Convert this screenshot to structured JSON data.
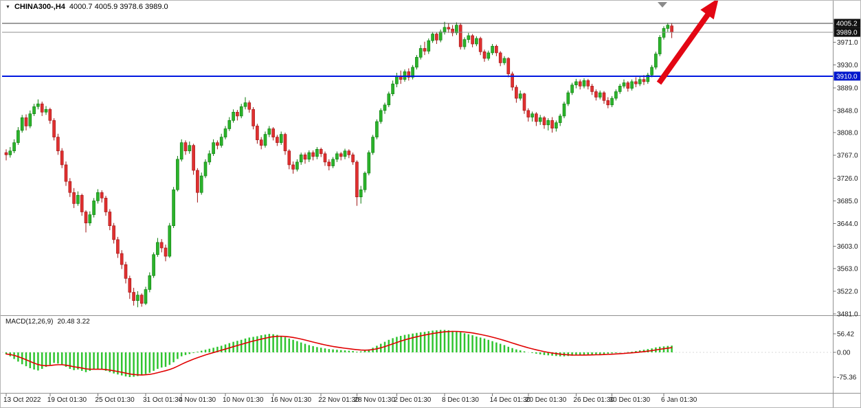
{
  "header": {
    "dropdown_icon": "▼",
    "symbol_label": "CHINA300-,H4",
    "ohlc": "4000.7 4005.9 3978.6 3989.0"
  },
  "macd_header": {
    "label": "MACD(12,26,9)",
    "values": "20.48 3.22"
  },
  "price_axis": {
    "ticks": [
      "3971.0",
      "3930.0",
      "3889.0",
      "3848.0",
      "3808.0",
      "3767.0",
      "3726.0",
      "3685.0",
      "3644.0",
      "3603.0",
      "3563.0",
      "3522.0",
      "3481.0"
    ],
    "badges": [
      {
        "value": "4005.2",
        "bg": "#101010",
        "fg": "#ffffff"
      },
      {
        "value": "3989.0",
        "bg": "#101010",
        "fg": "#ffffff"
      },
      {
        "value": "3910.0",
        "bg": "#0017cc",
        "fg": "#ffffff"
      }
    ]
  },
  "macd_axis": {
    "ticks": [
      "56.42",
      "0.00",
      "-75.36"
    ]
  },
  "time_axis": {
    "labels": [
      {
        "text": "13 Oct 2022",
        "bar": 0
      },
      {
        "text": "19 Oct 01:30",
        "bar": 11
      },
      {
        "text": "25 Oct 01:30",
        "bar": 23
      },
      {
        "text": "31 Oct 01:30",
        "bar": 35
      },
      {
        "text": "4 Nov 01:30",
        "bar": 44
      },
      {
        "text": "10 Nov 01:30",
        "bar": 55
      },
      {
        "text": "16 Nov 01:30",
        "bar": 67
      },
      {
        "text": "22 Nov 01:30",
        "bar": 79
      },
      {
        "text": "28 Nov 01:30",
        "bar": 88
      },
      {
        "text": "2 Dec 01:30",
        "bar": 98
      },
      {
        "text": "8 Dec 01:30",
        "bar": 110
      },
      {
        "text": "14 Dec 01:30",
        "bar": 122
      },
      {
        "text": "20 Dec 01:30",
        "bar": 131
      },
      {
        "text": "26 Dec 01:30",
        "bar": 143
      },
      {
        "text": "30 Dec 01:30",
        "bar": 152
      },
      {
        "text": "6 Jan 01:30",
        "bar": 165
      }
    ]
  },
  "colors": {
    "candle_up": "#2bb32b",
    "candle_up_stroke": "#0a7a0a",
    "candle_down": "#e03030",
    "candle_down_stroke": "#9e1212",
    "support_line": "#0017e0",
    "high_level_line": "#3c3c3c",
    "close_level_line": "#8c8c8c",
    "macd_histogram": "#2fc42f",
    "macd_signal": "#e00000",
    "arrow": "#e30613",
    "bar_marker": "#8a8a8a",
    "axis_text": "#1a1a1a"
  },
  "annotations": {
    "red_arrow_direction": "up-right",
    "bar_shift_marker": "▼"
  },
  "chart_data": {
    "type": "candlestick",
    "symbol": "CHINA300-",
    "timeframe": "H4",
    "title": "CHINA300-,H4 4000.7 4005.9 3978.6 3989.0",
    "current_bar": {
      "open": 4000.7,
      "high": 4005.9,
      "low": 3978.6,
      "close": 3989.0
    },
    "price_axis_range": {
      "min": 3481.0,
      "max": 4005.2
    },
    "levels": {
      "session_high_line": 4005.2,
      "last_price_line": 3989.0,
      "horizontal_support_line": 3910.0
    },
    "candles": [
      [
        3772,
        3778,
        3758,
        3768
      ],
      [
        3768,
        3782,
        3763,
        3775
      ],
      [
        3775,
        3796,
        3771,
        3790
      ],
      [
        3790,
        3818,
        3786,
        3812
      ],
      [
        3812,
        3840,
        3808,
        3835
      ],
      [
        3835,
        3841,
        3812,
        3820
      ],
      [
        3820,
        3848,
        3816,
        3842
      ],
      [
        3842,
        3860,
        3838,
        3855
      ],
      [
        3855,
        3868,
        3850,
        3860
      ],
      [
        3860,
        3864,
        3838,
        3845
      ],
      [
        3845,
        3856,
        3840,
        3850
      ],
      [
        3850,
        3853,
        3824,
        3830
      ],
      [
        3830,
        3834,
        3794,
        3800
      ],
      [
        3800,
        3806,
        3768,
        3775
      ],
      [
        3775,
        3780,
        3744,
        3750
      ],
      [
        3750,
        3756,
        3712,
        3720
      ],
      [
        3720,
        3726,
        3692,
        3700
      ],
      [
        3700,
        3708,
        3672,
        3680
      ],
      [
        3680,
        3702,
        3676,
        3695
      ],
      [
        3695,
        3698,
        3658,
        3665
      ],
      [
        3665,
        3668,
        3628,
        3645
      ],
      [
        3645,
        3666,
        3640,
        3660
      ],
      [
        3660,
        3690,
        3655,
        3685
      ],
      [
        3685,
        3706,
        3680,
        3700
      ],
      [
        3700,
        3704,
        3682,
        3690
      ],
      [
        3690,
        3694,
        3658,
        3665
      ],
      [
        3665,
        3670,
        3632,
        3640
      ],
      [
        3640,
        3645,
        3608,
        3615
      ],
      [
        3615,
        3620,
        3582,
        3590
      ],
      [
        3590,
        3596,
        3562,
        3570
      ],
      [
        3570,
        3575,
        3536,
        3545
      ],
      [
        3545,
        3550,
        3508,
        3520
      ],
      [
        3520,
        3528,
        3496,
        3505
      ],
      [
        3505,
        3522,
        3493,
        3515
      ],
      [
        3515,
        3518,
        3494,
        3500
      ],
      [
        3500,
        3530,
        3497,
        3525
      ],
      [
        3525,
        3556,
        3520,
        3550
      ],
      [
        3550,
        3592,
        3546,
        3588
      ],
      [
        3588,
        3618,
        3584,
        3610
      ],
      [
        3610,
        3616,
        3592,
        3600
      ],
      [
        3600,
        3606,
        3576,
        3585
      ],
      [
        3585,
        3645,
        3582,
        3640
      ],
      [
        3640,
        3710,
        3636,
        3705
      ],
      [
        3705,
        3766,
        3702,
        3760
      ],
      [
        3760,
        3796,
        3756,
        3790
      ],
      [
        3790,
        3794,
        3768,
        3775
      ],
      [
        3775,
        3792,
        3770,
        3785
      ],
      [
        3785,
        3788,
        3732,
        3740
      ],
      [
        3740,
        3744,
        3682,
        3700
      ],
      [
        3700,
        3736,
        3696,
        3730
      ],
      [
        3730,
        3760,
        3726,
        3755
      ],
      [
        3755,
        3776,
        3750,
        3770
      ],
      [
        3770,
        3796,
        3766,
        3790
      ],
      [
        3790,
        3794,
        3778,
        3785
      ],
      [
        3785,
        3806,
        3781,
        3800
      ],
      [
        3800,
        3820,
        3796,
        3815
      ],
      [
        3815,
        3836,
        3811,
        3830
      ],
      [
        3830,
        3850,
        3826,
        3845
      ],
      [
        3845,
        3849,
        3830,
        3838
      ],
      [
        3838,
        3860,
        3834,
        3855
      ],
      [
        3855,
        3872,
        3850,
        3862
      ],
      [
        3862,
        3866,
        3844,
        3850
      ],
      [
        3850,
        3854,
        3814,
        3820
      ],
      [
        3820,
        3824,
        3788,
        3795
      ],
      [
        3795,
        3800,
        3778,
        3785
      ],
      [
        3785,
        3810,
        3781,
        3805
      ],
      [
        3805,
        3820,
        3800,
        3815
      ],
      [
        3815,
        3818,
        3794,
        3800
      ],
      [
        3800,
        3804,
        3784,
        3790
      ],
      [
        3790,
        3810,
        3786,
        3805
      ],
      [
        3805,
        3808,
        3768,
        3775
      ],
      [
        3775,
        3778,
        3742,
        3750
      ],
      [
        3750,
        3756,
        3734,
        3742
      ],
      [
        3742,
        3760,
        3738,
        3755
      ],
      [
        3755,
        3772,
        3750,
        3768
      ],
      [
        3768,
        3772,
        3752,
        3760
      ],
      [
        3760,
        3776,
        3755,
        3772
      ],
      [
        3772,
        3776,
        3758,
        3765
      ],
      [
        3765,
        3782,
        3760,
        3778
      ],
      [
        3778,
        3781,
        3764,
        3770
      ],
      [
        3770,
        3774,
        3748,
        3755
      ],
      [
        3755,
        3760,
        3740,
        3748
      ],
      [
        3748,
        3764,
        3744,
        3760
      ],
      [
        3760,
        3774,
        3755,
        3770
      ],
      [
        3770,
        3773,
        3758,
        3765
      ],
      [
        3765,
        3779,
        3760,
        3775
      ],
      [
        3775,
        3778,
        3762,
        3768
      ],
      [
        3768,
        3772,
        3750,
        3755
      ],
      [
        3755,
        3758,
        3676,
        3692
      ],
      [
        3692,
        3712,
        3680,
        3705
      ],
      [
        3705,
        3738,
        3700,
        3735
      ],
      [
        3735,
        3776,
        3731,
        3772
      ],
      [
        3772,
        3804,
        3768,
        3800
      ],
      [
        3800,
        3832,
        3796,
        3828
      ],
      [
        3828,
        3852,
        3824,
        3848
      ],
      [
        3848,
        3862,
        3842,
        3858
      ],
      [
        3858,
        3882,
        3854,
        3878
      ],
      [
        3878,
        3902,
        3874,
        3896
      ],
      [
        3896,
        3916,
        3890,
        3910
      ],
      [
        3910,
        3920,
        3896,
        3904
      ],
      [
        3904,
        3922,
        3900,
        3918
      ],
      [
        3918,
        3924,
        3902,
        3908
      ],
      [
        3908,
        3930,
        3904,
        3926
      ],
      [
        3926,
        3948,
        3922,
        3944
      ],
      [
        3944,
        3966,
        3940,
        3960
      ],
      [
        3960,
        3972,
        3948,
        3955
      ],
      [
        3955,
        3978,
        3950,
        3974
      ],
      [
        3974,
        3990,
        3970,
        3986
      ],
      [
        3986,
        3989,
        3968,
        3975
      ],
      [
        3975,
        3994,
        3971,
        3990
      ],
      [
        3990,
        4008,
        3985,
        3998
      ],
      [
        3998,
        4005,
        3988,
        3995
      ],
      [
        3995,
        4002,
        3982,
        3988
      ],
      [
        3988,
        4007,
        3984,
        4002
      ],
      [
        4002,
        4006,
        3958,
        3963
      ],
      [
        3963,
        3980,
        3958,
        3976
      ],
      [
        3976,
        3988,
        3970,
        3983
      ],
      [
        3983,
        3986,
        3962,
        3968
      ],
      [
        3968,
        3982,
        3964,
        3978
      ],
      [
        3978,
        3981,
        3948,
        3954
      ],
      [
        3954,
        3958,
        3936,
        3942
      ],
      [
        3942,
        3956,
        3938,
        3952
      ],
      [
        3952,
        3968,
        3948,
        3964
      ],
      [
        3964,
        3967,
        3946,
        3952
      ],
      [
        3952,
        3955,
        3928,
        3934
      ],
      [
        3934,
        3946,
        3930,
        3942
      ],
      [
        3942,
        3944,
        3908,
        3914
      ],
      [
        3914,
        3918,
        3884,
        3890
      ],
      [
        3890,
        3894,
        3862,
        3870
      ],
      [
        3870,
        3884,
        3866,
        3878
      ],
      [
        3878,
        3880,
        3842,
        3848
      ],
      [
        3848,
        3852,
        3828,
        3836
      ],
      [
        3836,
        3846,
        3828,
        3842
      ],
      [
        3842,
        3845,
        3820,
        3828
      ],
      [
        3828,
        3840,
        3822,
        3835
      ],
      [
        3835,
        3838,
        3815,
        3822
      ],
      [
        3822,
        3834,
        3812,
        3830
      ],
      [
        3830,
        3836,
        3808,
        3816
      ],
      [
        3816,
        3830,
        3810,
        3826
      ],
      [
        3826,
        3842,
        3820,
        3838
      ],
      [
        3838,
        3864,
        3834,
        3860
      ],
      [
        3860,
        3884,
        3856,
        3880
      ],
      [
        3880,
        3898,
        3876,
        3894
      ],
      [
        3894,
        3905,
        3888,
        3900
      ],
      [
        3900,
        3904,
        3886,
        3892
      ],
      [
        3892,
        3906,
        3888,
        3902
      ],
      [
        3902,
        3905,
        3886,
        3892
      ],
      [
        3892,
        3896,
        3876,
        3882
      ],
      [
        3882,
        3886,
        3866,
        3872
      ],
      [
        3872,
        3884,
        3868,
        3880
      ],
      [
        3880,
        3883,
        3860,
        3866
      ],
      [
        3866,
        3872,
        3852,
        3858
      ],
      [
        3858,
        3874,
        3854,
        3870
      ],
      [
        3870,
        3886,
        3866,
        3882
      ],
      [
        3882,
        3896,
        3878,
        3892
      ],
      [
        3892,
        3904,
        3888,
        3898
      ],
      [
        3898,
        3901,
        3882,
        3888
      ],
      [
        3888,
        3904,
        3884,
        3900
      ],
      [
        3900,
        3908,
        3890,
        3896
      ],
      [
        3896,
        3910,
        3892,
        3904
      ],
      [
        3904,
        3912,
        3894,
        3900
      ],
      [
        3900,
        3916,
        3896,
        3912
      ],
      [
        3912,
        3930,
        3908,
        3926
      ],
      [
        3926,
        3954,
        3922,
        3950
      ],
      [
        3950,
        3984,
        3946,
        3980
      ],
      [
        3980,
        4000,
        3976,
        3996
      ],
      [
        3996,
        4006,
        3990,
        4002
      ],
      [
        4000.7,
        4005.9,
        3978.6,
        3989.0
      ]
    ],
    "macd": {
      "params": [
        12,
        26,
        9
      ],
      "main_value": 20.48,
      "signal_value": 3.22,
      "range_ticks": [
        56.42,
        0.0,
        -75.36
      ],
      "histogram": [
        -5,
        -12,
        -20,
        -28,
        -36,
        -42,
        -48,
        -52,
        -55,
        -50,
        -44,
        -38,
        -32,
        -34,
        -38,
        -44,
        -50,
        -54,
        -52,
        -56,
        -60,
        -56,
        -52,
        -50,
        -52,
        -56,
        -60,
        -64,
        -67,
        -70,
        -73,
        -75,
        -74,
        -72,
        -70,
        -66,
        -62,
        -56,
        -50,
        -46,
        -44,
        -38,
        -30,
        -20,
        -12,
        -8,
        -5,
        -2,
        2,
        5,
        8,
        11,
        14,
        17,
        20,
        24,
        28,
        32,
        35,
        38,
        42,
        45,
        47,
        49,
        52,
        54,
        56,
        55,
        53,
        50,
        46,
        42,
        38,
        34,
        30,
        26,
        22,
        19,
        16,
        14,
        12,
        10,
        9,
        8,
        7,
        6,
        5,
        4,
        2,
        3,
        5,
        9,
        14,
        20,
        26,
        32,
        38,
        43,
        47,
        50,
        53,
        55,
        57,
        59,
        61,
        62,
        64,
        66,
        67,
        68,
        68,
        67,
        65,
        63,
        61,
        58,
        55,
        52,
        48,
        45,
        42,
        38,
        34,
        30,
        26,
        22,
        17,
        13,
        9,
        6,
        3,
        0,
        -2,
        -4,
        -6,
        -8,
        -9,
        -10,
        -11,
        -12,
        -12,
        -11,
        -10,
        -9,
        -8,
        -8,
        -7,
        -7,
        -6,
        -6,
        -5,
        -4,
        -3,
        -2,
        -1,
        0,
        1,
        2,
        4,
        6,
        8,
        10,
        12,
        15,
        17,
        18,
        19.5,
        20.48
      ]
    }
  }
}
